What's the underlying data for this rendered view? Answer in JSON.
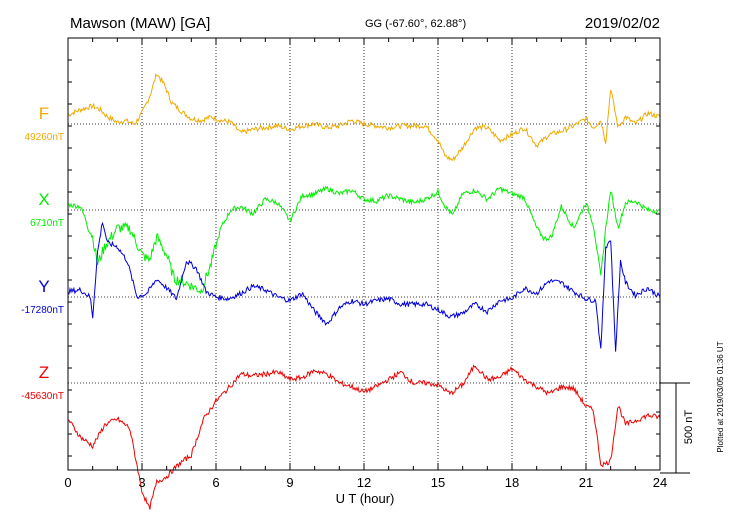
{
  "header": {
    "station": "Mawson (MAW)  [GA]",
    "coords": "GG (-67.60°,  62.88°)",
    "date": "2019/02/02"
  },
  "footer": {
    "plotted": "Plotted at 2019/03/05 01:36 UT"
  },
  "scale_bar": {
    "label": "500 nT",
    "value_nT": 500
  },
  "colors": {
    "F": "#f0aa00",
    "X": "#00ee00",
    "Y": "#0000dd",
    "Z": "#ee0000",
    "axis": "#000000"
  },
  "chart_data": {
    "type": "line",
    "xlabel": "U T (hour)",
    "xlim": [
      0,
      24
    ],
    "xticks": [
      "0",
      "3",
      "6",
      "9",
      "12",
      "15",
      "18",
      "21",
      "24"
    ],
    "grid": true,
    "series": [
      {
        "name": "F",
        "baseline": "49260nT",
        "color": "#f0aa00",
        "x": [
          0,
          0.5,
          1,
          1.3,
          1.6,
          2,
          2.3,
          2.7,
          3,
          3.3,
          3.6,
          3.9,
          4.2,
          4.6,
          5,
          5.4,
          5.8,
          6.2,
          6.6,
          7,
          7.5,
          8,
          8.5,
          9,
          9.5,
          10,
          10.5,
          11,
          11.5,
          12,
          12.5,
          13,
          13.5,
          14,
          14.5,
          15,
          15.3,
          15.6,
          16,
          16.5,
          17,
          17.5,
          18,
          18.5,
          19,
          19.5,
          20,
          20.5,
          21,
          21.3,
          21.6,
          21.8,
          22,
          22.3,
          22.6,
          23,
          23.5,
          24
        ],
        "y": [
          50,
          80,
          100,
          80,
          40,
          10,
          20,
          0,
          60,
          150,
          280,
          220,
          120,
          70,
          30,
          20,
          40,
          20,
          10,
          -50,
          -30,
          -20,
          -10,
          -30,
          -10,
          0,
          -20,
          -10,
          20,
          0,
          -10,
          -20,
          -10,
          -10,
          -10,
          -90,
          -180,
          -200,
          -130,
          -20,
          -20,
          -90,
          -60,
          -20,
          -120,
          -60,
          -40,
          -10,
          30,
          -20,
          20,
          -100,
          200,
          -20,
          40,
          0,
          60,
          40
        ]
      },
      {
        "name": "X",
        "baseline": "6710nT",
        "color": "#00ee00",
        "x": [
          0,
          0.5,
          1,
          1.2,
          1.5,
          2,
          2.5,
          3,
          3.3,
          3.6,
          4,
          4.3,
          4.7,
          5,
          5.4,
          5.8,
          6.2,
          6.6,
          7,
          7.5,
          8,
          8.5,
          9,
          9.5,
          10,
          10.5,
          11,
          11.5,
          12,
          12.5,
          13,
          13.5,
          14,
          14.5,
          15,
          15.3,
          15.6,
          16,
          16.5,
          17,
          17.5,
          18,
          18.5,
          19,
          19.3,
          19.6,
          20,
          20.5,
          21,
          21.3,
          21.6,
          21.8,
          22,
          22.3,
          22.6,
          23,
          23.5,
          24
        ],
        "y": [
          30,
          20,
          -150,
          -300,
          -200,
          -100,
          -100,
          -250,
          -280,
          -150,
          -250,
          -380,
          -400,
          -420,
          -450,
          -300,
          -100,
          0,
          20,
          -20,
          60,
          40,
          -60,
          80,
          90,
          120,
          90,
          110,
          60,
          50,
          80,
          60,
          40,
          60,
          100,
          20,
          -30,
          90,
          110,
          60,
          120,
          90,
          70,
          -100,
          -160,
          -150,
          20,
          -100,
          40,
          -80,
          -370,
          -100,
          110,
          -100,
          40,
          50,
          0,
          -10
        ]
      },
      {
        "name": "Y",
        "baseline": "-17280nT",
        "color": "#0000dd",
        "x": [
          0,
          0.5,
          0.9,
          1,
          1.2,
          1.4,
          1.6,
          2,
          2.4,
          2.8,
          3.2,
          3.6,
          4,
          4.4,
          4.8,
          5.2,
          5.6,
          6,
          6.5,
          7,
          7.5,
          8,
          8.5,
          9,
          9.5,
          10,
          10.5,
          11,
          11.5,
          12,
          12.5,
          13,
          13.5,
          14,
          14.5,
          15,
          15.5,
          16,
          16.5,
          17,
          17.5,
          18,
          18.5,
          19,
          19.5,
          20,
          20.5,
          21,
          21.4,
          21.6,
          21.8,
          22,
          22.2,
          22.4,
          22.6,
          23,
          23.5,
          24
        ],
        "y": [
          30,
          40,
          0,
          -110,
          250,
          420,
          300,
          280,
          200,
          0,
          20,
          100,
          50,
          -10,
          200,
          160,
          30,
          0,
          -10,
          20,
          60,
          40,
          0,
          -20,
          20,
          -80,
          -150,
          -60,
          -20,
          -40,
          -20,
          -10,
          -40,
          -40,
          -40,
          -70,
          -110,
          -90,
          -40,
          -80,
          -20,
          -10,
          50,
          20,
          90,
          80,
          30,
          -10,
          -20,
          -300,
          280,
          320,
          -300,
          200,
          80,
          10,
          50,
          0
        ]
      },
      {
        "name": "Z",
        "baseline": "-45630nT",
        "color": "#ee0000",
        "x": [
          0,
          0.5,
          1,
          1.5,
          2,
          2.5,
          3,
          3.3,
          3.6,
          4,
          4.5,
          5,
          5.5,
          6,
          6.5,
          7,
          7.5,
          8,
          8.5,
          9,
          9.5,
          10,
          10.5,
          11,
          11.5,
          12,
          12.5,
          13,
          13.5,
          14,
          14.5,
          15,
          15.5,
          16,
          16.5,
          17,
          17.5,
          18,
          18.5,
          19,
          19.5,
          20,
          20.5,
          21,
          21.3,
          21.6,
          21.8,
          22,
          22.3,
          22.6,
          23,
          23.5,
          24
        ],
        "y": [
          -200,
          -300,
          -350,
          -230,
          -200,
          -250,
          -600,
          -700,
          -550,
          -520,
          -450,
          -400,
          -200,
          -100,
          -30,
          50,
          40,
          50,
          60,
          20,
          30,
          70,
          50,
          0,
          -20,
          -50,
          -20,
          20,
          60,
          0,
          0,
          -10,
          -60,
          -10,
          100,
          20,
          30,
          80,
          20,
          -20,
          -60,
          -20,
          -30,
          -130,
          -150,
          -450,
          -450,
          -430,
          -120,
          -230,
          -210,
          -180,
          -190
        ]
      }
    ]
  }
}
